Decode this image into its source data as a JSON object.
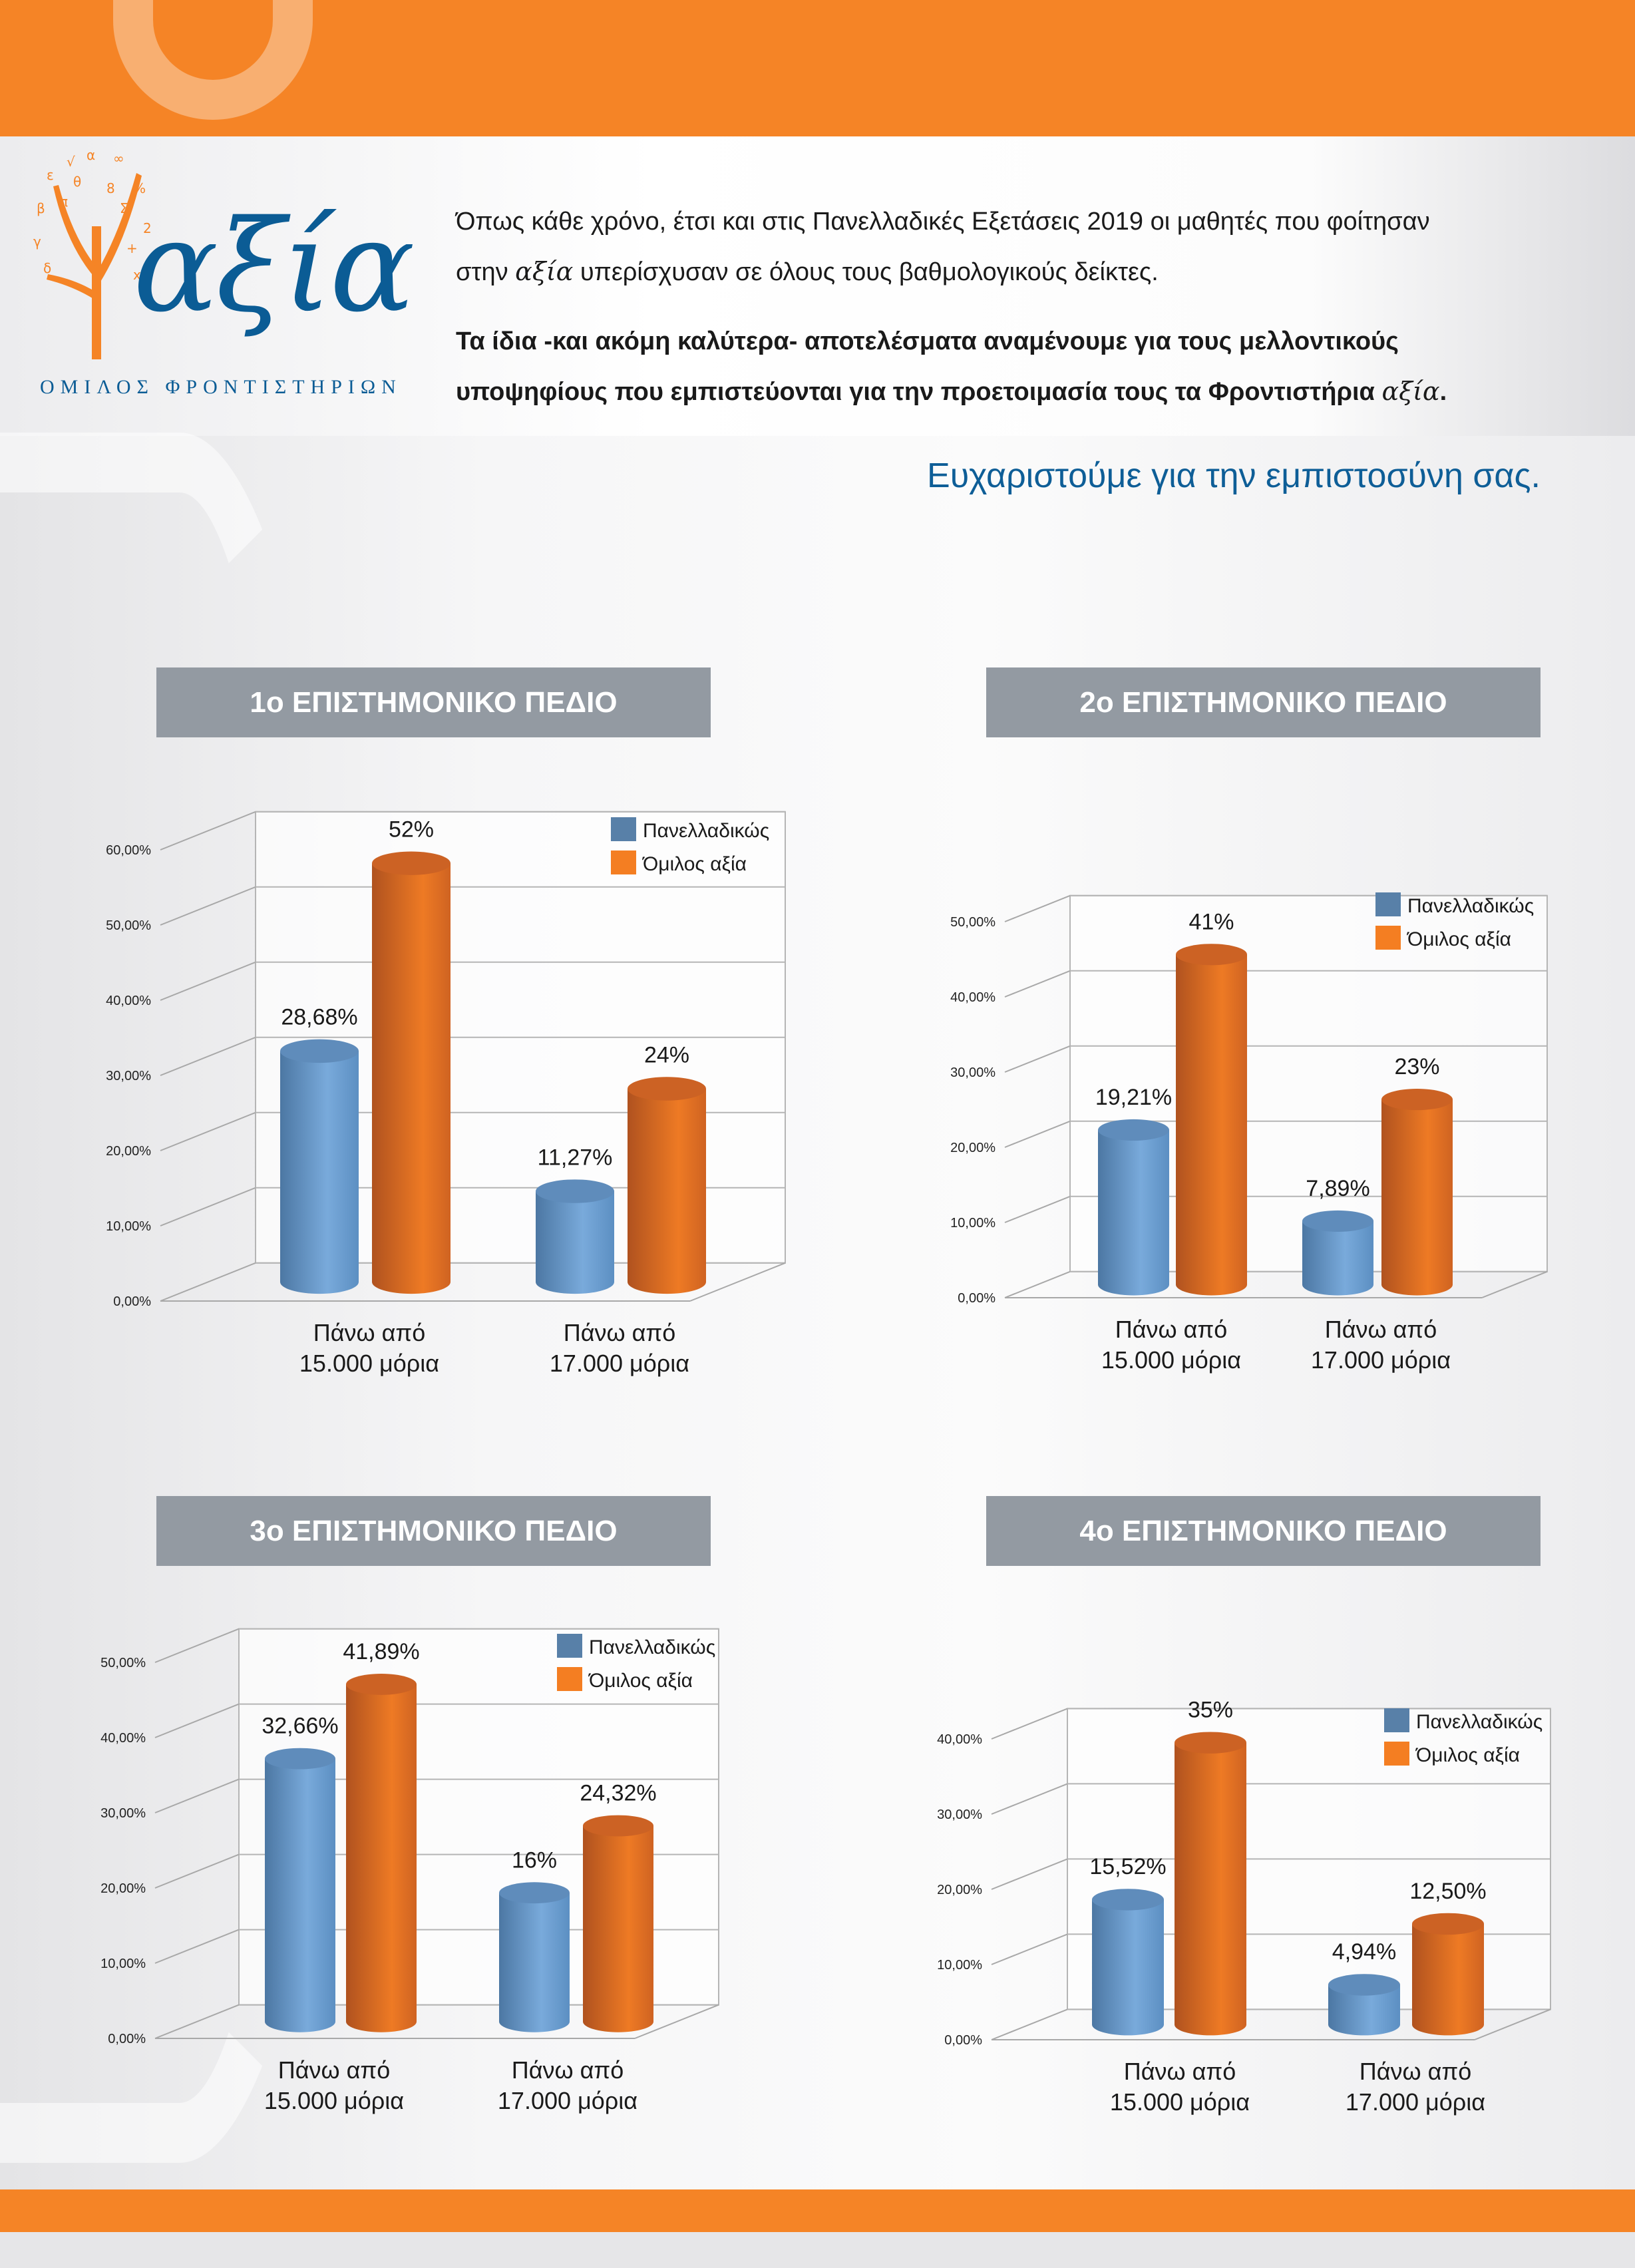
{
  "logo": {
    "word": "αξία",
    "subtitle": "ΟΜΙΛΟΣ ΦΡΟΝΤΙΣΤΗΡΙΩΝ"
  },
  "intro": {
    "line1": "Όπως κάθε χρόνο, έτσι και στις Πανελλαδικές Εξετάσεις 2019 οι μαθητές που φοίτησαν",
    "line2_pre": "στην ",
    "line2_brand": "αξία",
    "line2_post": " υπερίσχυσαν σε όλους τους βαθμολογικούς δείκτες.",
    "bold_line1": "Τα ίδια -και ακόμη καλύτερα- αποτελέσματα αναμένουμε για τους μελλοντικούς",
    "bold_line2_pre": "υποψηφίους που εμπιστεύονται για την προετοιμασία τους τα Φροντιστήρια ",
    "bold_line2_brand": "αξία",
    "bold_line2_post": ".",
    "thanks": "Ευχαριστούμε για την εμπιστοσύνη σας."
  },
  "colors": {
    "orange": "#f58426",
    "blue_text": "#0e5e97",
    "header_gray": "#939aa2",
    "series_blue": "#5b8fc4",
    "series_orange": "#e8741f"
  },
  "chart_data": [
    {
      "type": "bar",
      "title": "1ο ΕΠΙΣΤΗΜΟΝΙΚΟ ΠΕΔΙΟ",
      "categories": [
        "Πάνω από|15.000 μόρια",
        "Πάνω από|17.000 μόρια"
      ],
      "yticks": [
        "0,00%",
        "10,00%",
        "20,00%",
        "30,00%",
        "40,00%",
        "50,00%",
        "60,00%"
      ],
      "ylim": [
        0,
        60
      ],
      "legend": "top-right",
      "series": [
        {
          "name": "Πανελλαδικώς",
          "values": [
            28.68,
            11.27
          ],
          "labels": [
            "28,68%",
            "11,27%"
          ]
        },
        {
          "name": "Όμιλος αξία",
          "values": [
            52,
            24
          ],
          "labels": [
            "52%",
            "24%"
          ]
        }
      ]
    },
    {
      "type": "bar",
      "title": "2ο ΕΠΙΣΤΗΜΟΝΙΚΟ ΠΕΔΙΟ",
      "categories": [
        "Πάνω από|15.000 μόρια",
        "Πάνω από|17.000 μόρια"
      ],
      "yticks": [
        "0,00%",
        "10,00%",
        "20,00%",
        "30,00%",
        "40,00%",
        "50,00%"
      ],
      "ylim": [
        0,
        50
      ],
      "legend": "top-right",
      "series": [
        {
          "name": "Πανελλαδικώς",
          "values": [
            19.21,
            7.89
          ],
          "labels": [
            "19,21%",
            "7,89%"
          ]
        },
        {
          "name": "Όμιλος αξία",
          "values": [
            41,
            23
          ],
          "labels": [
            "41%",
            "23%"
          ]
        }
      ]
    },
    {
      "type": "bar",
      "title": "3ο ΕΠΙΣΤΗΜΟΝΙΚΟ ΠΕΔΙΟ",
      "categories": [
        "Πάνω από|15.000 μόρια",
        "Πάνω από|17.000 μόρια"
      ],
      "yticks": [
        "0,00%",
        "10,00%",
        "20,00%",
        "30,00%",
        "40,00%",
        "50,00%"
      ],
      "ylim": [
        0,
        50
      ],
      "legend": "top-right",
      "series": [
        {
          "name": "Πανελλαδικώς",
          "values": [
            32.66,
            16
          ],
          "labels": [
            "32,66%",
            "16%"
          ]
        },
        {
          "name": "Όμιλος αξία",
          "values": [
            41.89,
            24.32
          ],
          "labels": [
            "41,89%",
            "24,32%"
          ]
        }
      ]
    },
    {
      "type": "bar",
      "title": "4ο ΕΠΙΣΤΗΜΟΝΙΚΟ ΠΕΔΙΟ",
      "categories": [
        "Πάνω από|15.000 μόρια",
        "Πάνω από|17.000 μόρια"
      ],
      "yticks": [
        "0,00%",
        "10,00%",
        "20,00%",
        "30,00%",
        "40,00%"
      ],
      "ylim": [
        0,
        40
      ],
      "legend": "top-right",
      "series": [
        {
          "name": "Πανελλαδικώς",
          "values": [
            15.52,
            4.94
          ],
          "labels": [
            "15,52%",
            "4,94%"
          ]
        },
        {
          "name": "Όμιλος αξία",
          "values": [
            35,
            12.5
          ],
          "labels": [
            "35%",
            "12,50%"
          ]
        }
      ]
    }
  ]
}
